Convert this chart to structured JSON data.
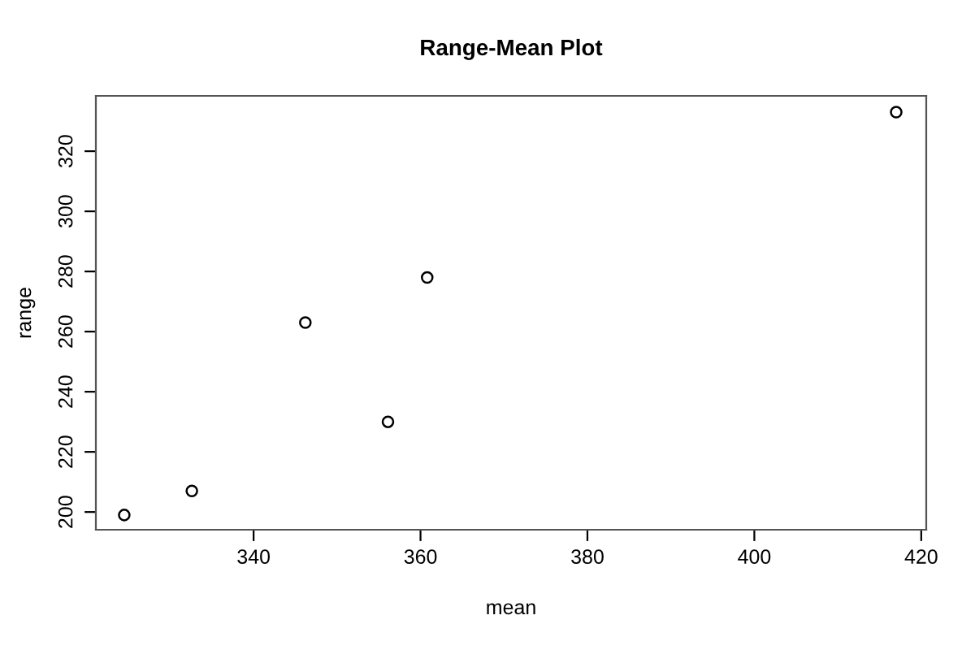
{
  "chart_data": {
    "type": "scatter",
    "title": "Range-Mean Plot",
    "xlabel": "mean",
    "ylabel": "range",
    "x": [
      324.5,
      332.6,
      346.2,
      356.1,
      360.8,
      417.0
    ],
    "values": [
      199,
      207,
      263,
      230,
      278,
      333
    ],
    "color": "#000000",
    "marker": "circle",
    "xlim": [
      321.1,
      420.6
    ],
    "ylim": [
      194.1,
      338.4
    ],
    "xticks": [
      340,
      360,
      380,
      400,
      420
    ],
    "yticks": [
      200,
      220,
      240,
      260,
      280,
      300,
      320
    ],
    "grid": false
  }
}
